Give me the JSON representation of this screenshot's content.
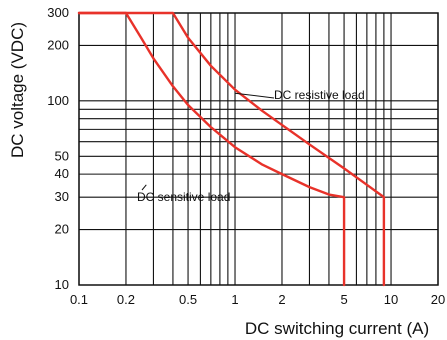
{
  "chart_data": {
    "type": "line",
    "title": "",
    "xlabel": "DC switching current (A)",
    "ylabel": "DC voltage (VDC)",
    "x_scale": "log",
    "y_scale": "log",
    "xlim": [
      0.1,
      20
    ],
    "ylim": [
      10,
      300
    ],
    "grid": true,
    "colors": {
      "series": "#e8322a",
      "grid": "#111111",
      "text": "#111111"
    },
    "x_ticks": [
      {
        "value": 0.1,
        "label": "0.1"
      },
      {
        "value": 0.2,
        "label": "0.2"
      },
      {
        "value": 0.5,
        "label": "0.5"
      },
      {
        "value": 1,
        "label": "1"
      },
      {
        "value": 2,
        "label": "2"
      },
      {
        "value": 5,
        "label": "5"
      },
      {
        "value": 10,
        "label": "10"
      },
      {
        "value": 20,
        "label": "20"
      }
    ],
    "y_ticks": [
      {
        "value": 10,
        "label": "10"
      },
      {
        "value": 20,
        "label": "20"
      },
      {
        "value": 30,
        "label": "30"
      },
      {
        "value": 40,
        "label": "40"
      },
      {
        "value": 50,
        "label": "50"
      },
      {
        "value": 100,
        "label": "100"
      },
      {
        "value": 200,
        "label": "200"
      },
      {
        "value": 300,
        "label": "300"
      }
    ],
    "x_gridlines": [
      0.1,
      0.2,
      0.3,
      0.4,
      0.5,
      0.6,
      0.7,
      0.8,
      0.9,
      1,
      2,
      3,
      4,
      5,
      6,
      7,
      8,
      9,
      10,
      20
    ],
    "y_gridlines": [
      10,
      20,
      30,
      40,
      50,
      60,
      70,
      80,
      90,
      100,
      200,
      300
    ],
    "series": [
      {
        "x": [
          0.1,
          0.2,
          0.25,
          0.3,
          0.4,
          0.5,
          0.7,
          1,
          1.5,
          2,
          3,
          4,
          5,
          5,
          5
        ],
        "y": [
          300,
          300,
          220,
          170,
          120,
          95,
          72,
          56,
          45,
          40,
          34,
          31,
          30,
          20,
          10
        ]
      },
      {
        "x": [
          0.1,
          0.4,
          0.5,
          0.7,
          1,
          1.5,
          2,
          3,
          5,
          7,
          9,
          9,
          9
        ],
        "y": [
          300,
          300,
          220,
          155,
          115,
          88,
          74,
          58,
          43,
          35,
          30,
          20,
          10
        ]
      }
    ],
    "annotations": [
      {
        "text": "DC resistive load",
        "point": {
          "x": 1,
          "y": 110
        }
      },
      {
        "text": "DC sensitive load",
        "point": {
          "x": 0.27,
          "y": 35
        }
      }
    ]
  }
}
